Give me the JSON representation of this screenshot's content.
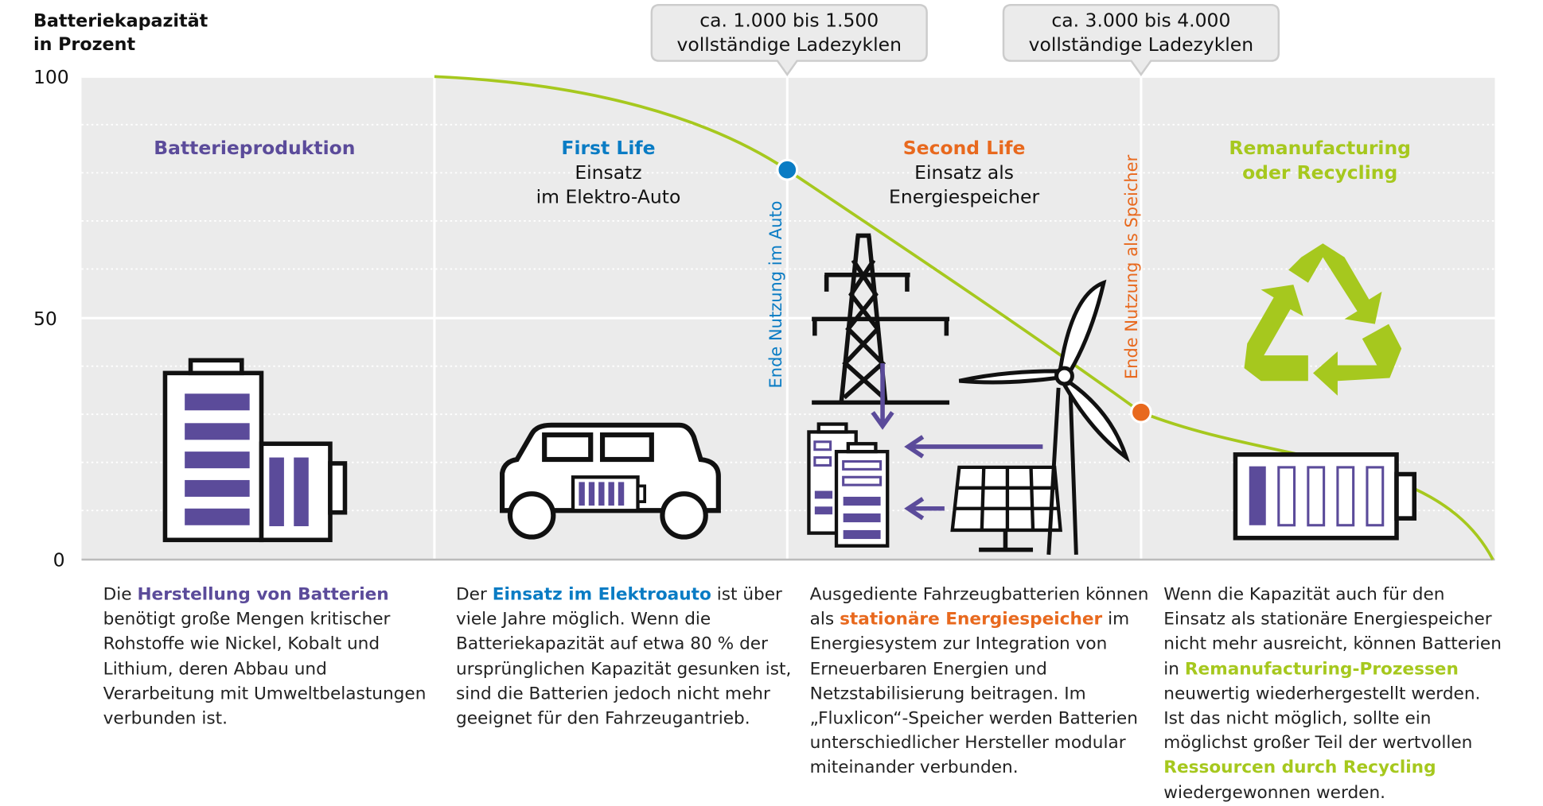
{
  "axis": {
    "title_lines": [
      "Batteriekapazität",
      "in Prozent"
    ],
    "ticks": [
      100,
      50,
      0
    ]
  },
  "callouts": [
    {
      "lines": [
        "ca. 1.000 bis 1.500",
        "vollständige Ladezyklen"
      ]
    },
    {
      "lines": [
        "ca. 3.000 bis 4.000",
        "vollständige Ladezyklen"
      ]
    }
  ],
  "markers": [
    "Ende Nutzung im Auto",
    "Ende Nutzung als Speicher"
  ],
  "phases": [
    {
      "heading": [
        "Batterieproduktion"
      ],
      "sub": [],
      "description": [
        "Die ",
        {
          "strong": "Herstellung von Batterien"
        },
        " benötigt große Mengen kritischer Rohstoffe wie Nickel, Kobalt und Lithium, deren Abbau und Verarbeitung mit Umweltbelastungen verbunden ist."
      ]
    },
    {
      "heading": [
        "First Life"
      ],
      "sub": [
        "Einsatz",
        "im Elektro-Auto"
      ],
      "description": [
        "Der ",
        {
          "strong": "Einsatz im Elektroauto"
        },
        " ist über viele Jahre möglich. Wenn die Batteriekapazität auf etwa 80 % der ursprünglichen Kapazität gesunken ist, sind die Batterien jedoch nicht mehr geeignet für den Fahrzeugantrieb."
      ]
    },
    {
      "heading": [
        "Second Life"
      ],
      "sub": [
        "Einsatz als",
        "Energiespeicher"
      ],
      "description": [
        "Ausgediente Fahrzeugbatterien können als ",
        {
          "strong": "stationäre Energiespeicher"
        },
        " im Energiesystem zur Integration von Erneuerbaren Energien und Netzstabilisierung beitragen. Im „Fluxlicon“-Speicher werden Batterien unterschiedlicher Hersteller modular miteinander verbunden."
      ]
    },
    {
      "heading": [
        "Remanufacturing",
        "oder Recycling"
      ],
      "sub": [],
      "description": [
        "Wenn die Kapazität auch für den Einsatz als stationäre Energiespeicher nicht mehr ausreicht, können Batterien in ",
        {
          "strong": "Remanufacturing-Prozessen"
        },
        " neuwertig wiederhergestellt werden. Ist das nicht möglich, sollte ein möglichst großer Teil der wertvollen ",
        {
          "strong": "Ressourcen durch Recycling"
        },
        " wiedergewonnen werden."
      ]
    }
  ]
}
